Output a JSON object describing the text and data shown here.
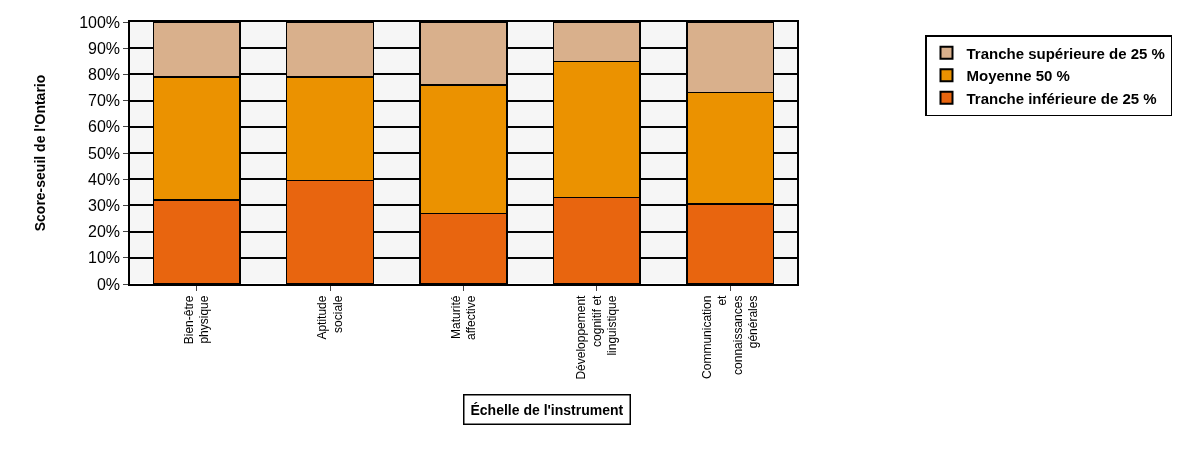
{
  "chart_data": {
    "type": "bar",
    "stacked": true,
    "xlabel": "Échelle de l'instrument",
    "ylabel": "Score-seuil de l'Ontario",
    "categories": [
      "Bien-être\nphysique",
      "Aptitude\nsociale",
      "Maturité\naffective",
      "Développement\ncognitif et\nlinguistique",
      "Communication\net\nconnaissances\ngénérales"
    ],
    "series": [
      {
        "name": "Tranche inférieure de 25 %",
        "color": "#e8650f",
        "values": [
          32,
          39.5,
          27,
          33,
          30.5
        ]
      },
      {
        "name": "Moyenne 50 %",
        "color": "#eb9200",
        "values": [
          47,
          39.5,
          49,
          52,
          42.5
        ]
      },
      {
        "name": "Tranche supérieure de 25 %",
        "color": "#d9b08c",
        "values": [
          21,
          21,
          24,
          15,
          27
        ]
      }
    ],
    "ylim": [
      0,
      100
    ],
    "yticks": [
      {
        "value": 0,
        "label": "0%"
      },
      {
        "value": 10,
        "label": "10%"
      },
      {
        "value": 20,
        "label": "20%"
      },
      {
        "value": 30,
        "label": "30%"
      },
      {
        "value": 40,
        "label": "40%"
      },
      {
        "value": 50,
        "label": "50%"
      },
      {
        "value": 60,
        "label": "60%"
      },
      {
        "value": 70,
        "label": "70%"
      },
      {
        "value": 80,
        "label": "80%"
      },
      {
        "value": 90,
        "label": "90%"
      },
      {
        "value": 100,
        "label": "100%"
      }
    ],
    "grid": "y",
    "legend": "right"
  }
}
